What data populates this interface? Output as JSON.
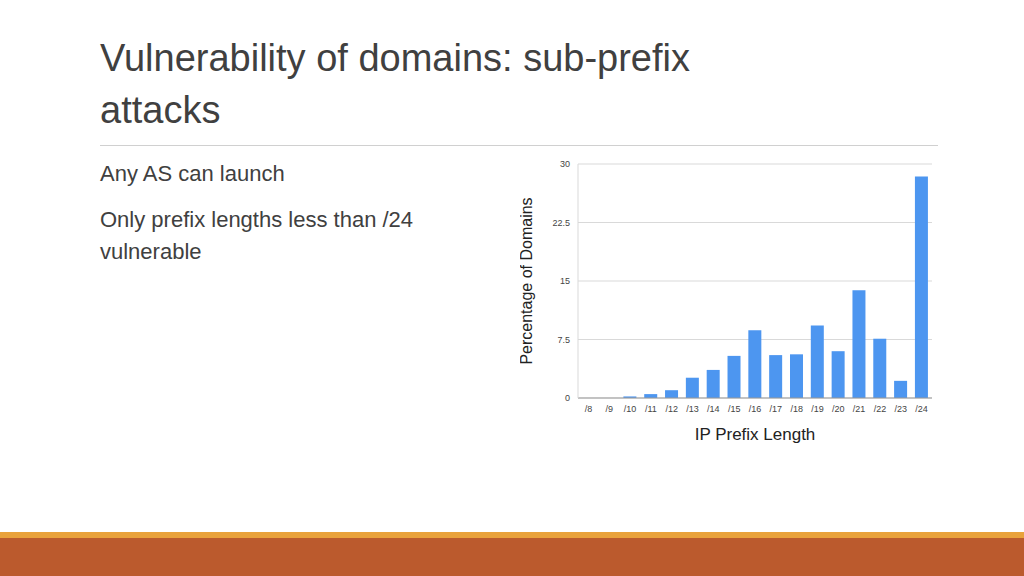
{
  "slide": {
    "title": "Vulnerability of domains: sub-prefix attacks",
    "bullets": [
      "Any AS can launch",
      "Only prefix lengths less than /24 vulnerable"
    ]
  },
  "chart_data": {
    "type": "bar",
    "categories": [
      "/8",
      "/9",
      "/10",
      "/11",
      "/12",
      "/13",
      "/14",
      "/15",
      "/16",
      "/17",
      "/18",
      "/19",
      "/20",
      "/21",
      "/22",
      "/23",
      "/24"
    ],
    "values": [
      0,
      0,
      0.2,
      0.5,
      1.0,
      2.6,
      3.6,
      5.4,
      8.7,
      5.5,
      5.6,
      9.3,
      6.0,
      13.8,
      7.6,
      2.2,
      28.4
    ],
    "color": "#4d96f0",
    "x_label": "IP Prefix Length",
    "y_label": "Percentage of Domains",
    "ylim": [
      0,
      30
    ],
    "yticks": [
      0,
      7.5,
      15,
      22.5,
      30
    ],
    "grid": true
  }
}
